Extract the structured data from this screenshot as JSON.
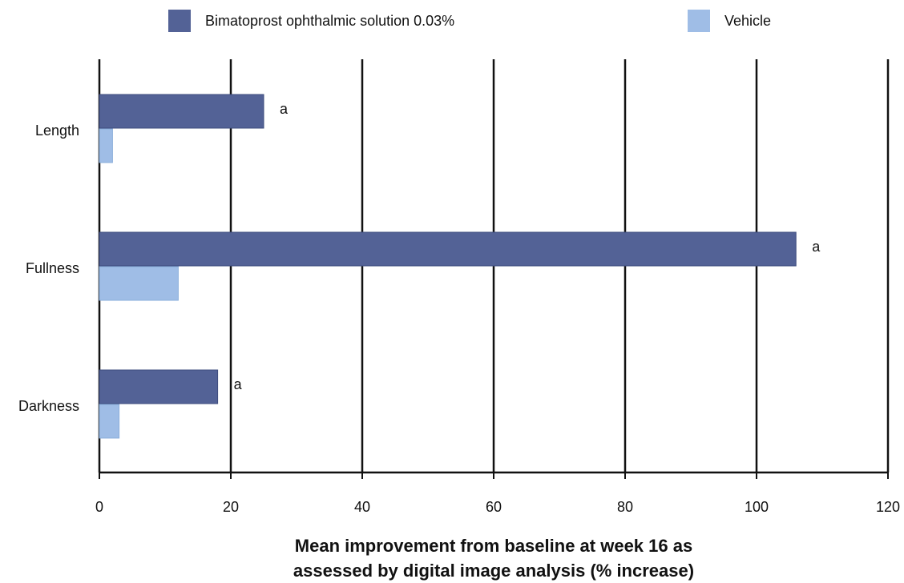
{
  "legend": {
    "series1": "Bimatoprost ophthalmic solution 0.03%",
    "series2": "Vehicle"
  },
  "xlabel": {
    "line1": "Mean improvement from baseline at week 16 as",
    "line2": "assessed by digital image analysis (% increase)"
  },
  "colors": {
    "series1": "#536296",
    "series2": "#9fbde6",
    "axis": "#111111"
  },
  "chart_data": {
    "type": "bar",
    "orientation": "horizontal",
    "categories": [
      "Length",
      "Fullness",
      "Darkness"
    ],
    "series": [
      {
        "name": "Bimatoprost ophthalmic solution 0.03%",
        "values": [
          25,
          106,
          18
        ],
        "annotations": [
          "a",
          "a",
          "a"
        ]
      },
      {
        "name": "Vehicle",
        "values": [
          2,
          12,
          3
        ]
      }
    ],
    "xlim": [
      0,
      120
    ],
    "xticks": [
      0,
      20,
      40,
      60,
      80,
      100,
      120
    ],
    "grid": "vertical",
    "legend_position": "top"
  }
}
